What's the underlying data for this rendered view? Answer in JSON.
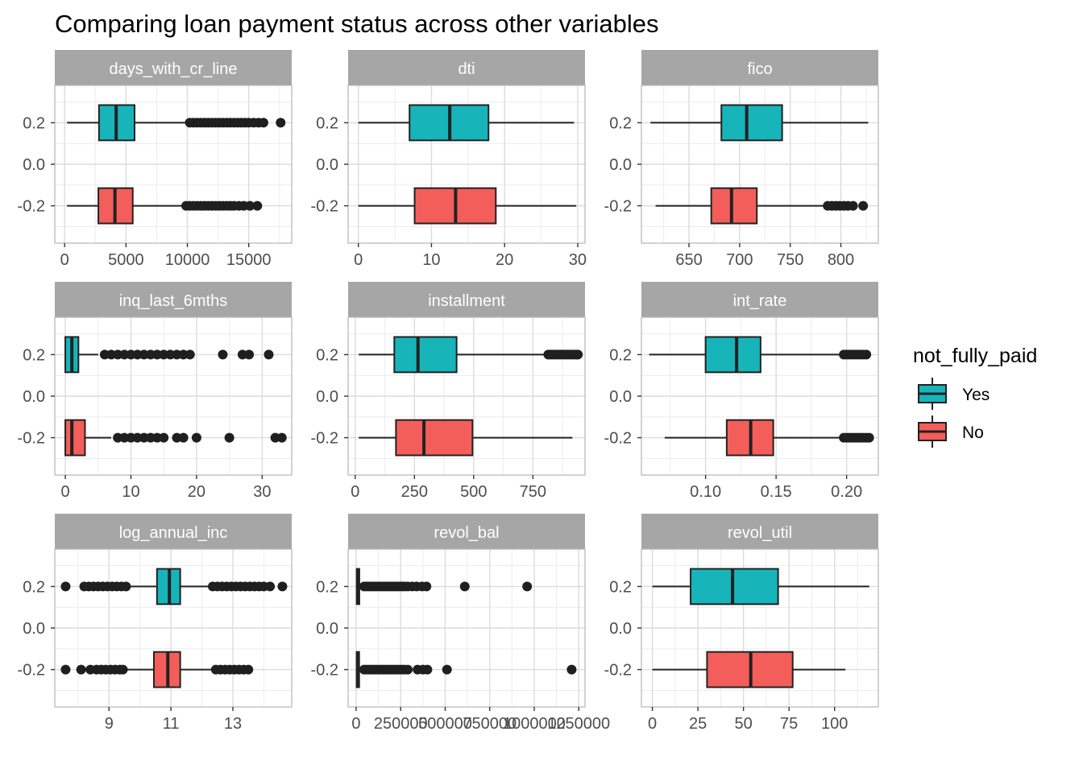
{
  "title": "Comparing loan payment status across other variables",
  "legend": {
    "title": "not_fully_paid",
    "items": [
      {
        "label": "Yes",
        "color": "#17b4ba"
      },
      {
        "label": "No",
        "color": "#f35e5a"
      }
    ]
  },
  "colors": {
    "yes": "#17b4ba",
    "no": "#f35e5a",
    "strip": "#a6a6a6",
    "grid": "#dcdcdc",
    "box_line": "#222222"
  },
  "chart_data": {
    "type": "boxplot",
    "y_ticks": [
      {
        "value": 0.2,
        "label": "0.2"
      },
      {
        "value": 0.0,
        "label": "0.0"
      },
      {
        "value": -0.2,
        "label": "-0.2"
      }
    ],
    "ylim": [
      -0.38,
      0.38
    ],
    "grid": true,
    "legend_position": "right",
    "panels": [
      {
        "name": "days_with_cr_line",
        "xlim": [
          -800,
          18500
        ],
        "ticks": [
          {
            "v": 0,
            "l": "0"
          },
          {
            "v": 5000,
            "l": "5000"
          },
          {
            "v": 10000,
            "l": "10000"
          },
          {
            "v": 15000,
            "l": "15000"
          }
        ],
        "yes": {
          "min": 200,
          "q1": 2800,
          "median": 4200,
          "q3": 5700,
          "max": 10000,
          "outliers": [
            10200,
            10500,
            10800,
            11100,
            11400,
            11700,
            12000,
            12300,
            12600,
            12900,
            13200,
            13500,
            13800,
            14100,
            14400,
            14700,
            15000,
            15400,
            15800,
            16200,
            17600
          ]
        },
        "no": {
          "min": 200,
          "q1": 2750,
          "median": 4100,
          "q3": 5550,
          "max": 9800,
          "outliers": [
            9900,
            10200,
            10500,
            10800,
            11100,
            11400,
            11700,
            12000,
            12300,
            12600,
            12900,
            13200,
            13500,
            13800,
            14200,
            14600,
            15100,
            15700
          ]
        }
      },
      {
        "name": "dti",
        "xlim": [
          -1.4,
          31
        ],
        "ticks": [
          {
            "v": 0,
            "l": "0"
          },
          {
            "v": 10,
            "l": "10"
          },
          {
            "v": 20,
            "l": "20"
          },
          {
            "v": 30,
            "l": "30"
          }
        ],
        "yes": {
          "min": 0,
          "q1": 7,
          "median": 12.5,
          "q3": 17.8,
          "max": 29.5,
          "outliers": []
        },
        "no": {
          "min": 0,
          "q1": 7.7,
          "median": 13.3,
          "q3": 18.8,
          "max": 29.8,
          "outliers": []
        }
      },
      {
        "name": "fico",
        "xlim": [
          603,
          837
        ],
        "ticks": [
          {
            "v": 650,
            "l": "650"
          },
          {
            "v": 700,
            "l": "700"
          },
          {
            "v": 750,
            "l": "750"
          },
          {
            "v": 800,
            "l": "800"
          }
        ],
        "yes": {
          "min": 612,
          "q1": 682,
          "median": 707,
          "q3": 742,
          "max": 827,
          "outliers": []
        },
        "no": {
          "min": 617,
          "q1": 672,
          "median": 692,
          "q3": 717,
          "max": 784,
          "outliers": [
            787,
            791,
            795,
            799,
            803,
            807,
            812,
            822
          ]
        }
      },
      {
        "name": "inq_last_6mths",
        "xlim": [
          -1.6,
          34.5
        ],
        "ticks": [
          {
            "v": 0,
            "l": "0"
          },
          {
            "v": 10,
            "l": "10"
          },
          {
            "v": 20,
            "l": "20"
          },
          {
            "v": 30,
            "l": "30"
          }
        ],
        "yes": {
          "min": 0,
          "q1": 0,
          "median": 1,
          "q3": 2,
          "max": 5,
          "outliers": [
            6,
            7,
            8,
            9,
            10,
            11,
            12,
            13,
            14,
            15,
            16,
            17,
            18,
            19,
            24,
            27,
            28,
            31
          ]
        },
        "no": {
          "min": 0,
          "q1": 0,
          "median": 1,
          "q3": 3,
          "max": 7,
          "outliers": [
            8,
            9,
            10,
            11,
            12,
            13,
            14,
            15,
            17,
            18,
            20,
            25,
            32,
            33
          ]
        }
      },
      {
        "name": "installment",
        "xlim": [
          -30,
          970
        ],
        "ticks": [
          {
            "v": 0,
            "l": "0"
          },
          {
            "v": 250,
            "l": "250"
          },
          {
            "v": 500,
            "l": "500"
          },
          {
            "v": 750,
            "l": "750"
          }
        ],
        "yes": {
          "min": 15,
          "q1": 165,
          "median": 265,
          "q3": 428,
          "max": 810,
          "outliers": [
            815,
            825,
            835,
            845,
            855,
            865,
            875,
            885,
            895,
            905,
            915,
            925,
            935,
            940
          ]
        },
        "no": {
          "min": 15,
          "q1": 172,
          "median": 290,
          "q3": 495,
          "max": 917,
          "outliers": []
        }
      },
      {
        "name": "int_rate",
        "xlim": [
          0.0545,
          0.2225
        ],
        "ticks": [
          {
            "v": 0.1,
            "l": "0.10"
          },
          {
            "v": 0.15,
            "l": "0.15"
          },
          {
            "v": 0.2,
            "l": "0.20"
          }
        ],
        "yes": {
          "min": 0.06,
          "q1": 0.1,
          "median": 0.122,
          "q3": 0.139,
          "max": 0.197,
          "outliers": [
            0.198,
            0.2,
            0.202,
            0.204,
            0.206,
            0.208,
            0.21,
            0.212,
            0.214
          ]
        },
        "no": {
          "min": 0.071,
          "q1": 0.115,
          "median": 0.132,
          "q3": 0.148,
          "max": 0.196,
          "outliers": [
            0.198,
            0.2,
            0.202,
            0.204,
            0.206,
            0.208,
            0.21,
            0.212,
            0.214,
            0.216
          ]
        }
      },
      {
        "name": "log_annual_inc",
        "xlim": [
          7.25,
          14.9
        ],
        "ticks": [
          {
            "v": 9,
            "l": "9"
          },
          {
            "v": 11,
            "l": "11"
          },
          {
            "v": 13,
            "l": "13"
          }
        ],
        "yes": {
          "min": 9.6,
          "q1": 10.55,
          "median": 10.95,
          "q3": 11.3,
          "max": 12.3,
          "outliers": [
            7.6,
            8.2,
            8.35,
            8.5,
            8.65,
            8.8,
            8.95,
            9.1,
            9.25,
            9.4,
            9.55,
            12.35,
            12.5,
            12.65,
            12.8,
            12.95,
            13.1,
            13.25,
            13.4,
            13.55,
            13.7,
            13.85,
            14.0,
            14.2,
            14.6
          ]
        },
        "no": {
          "min": 9.5,
          "q1": 10.45,
          "median": 10.9,
          "q3": 11.3,
          "max": 12.4,
          "outliers": [
            7.6,
            8.1,
            8.4,
            8.6,
            8.75,
            8.9,
            9.05,
            9.2,
            9.35,
            9.45,
            12.45,
            12.6,
            12.75,
            12.9,
            13.05,
            13.2,
            13.35,
            13.5
          ]
        }
      },
      {
        "name": "revol_bal",
        "xlim": [
          -45000,
          1285000
        ],
        "ticks": [
          {
            "v": 0,
            "l": "0"
          },
          {
            "v": 250000,
            "l": "250000"
          },
          {
            "v": 500000,
            "l": "500000"
          },
          {
            "v": 750000,
            "l": "750000"
          },
          {
            "v": 1000000,
            "l": "1000000"
          },
          {
            "v": 1250000,
            "l": "1250000"
          }
        ],
        "yes": {
          "min": 0,
          "q1": 3500,
          "median": 8500,
          "q3": 18000,
          "max": 40000,
          "outliers": [
            45000,
            60000,
            75000,
            90000,
            105000,
            120000,
            135000,
            150000,
            165000,
            180000,
            195000,
            210000,
            225000,
            240000,
            255000,
            270000,
            290000,
            315000,
            340000,
            370000,
            395000,
            610000,
            960000
          ]
        },
        "no": {
          "min": 0,
          "q1": 3200,
          "median": 8000,
          "q3": 17000,
          "max": 38000,
          "outliers": [
            45000,
            60000,
            75000,
            90000,
            105000,
            120000,
            135000,
            150000,
            165000,
            180000,
            195000,
            210000,
            225000,
            240000,
            255000,
            270000,
            290000,
            345000,
            375000,
            400000,
            510000,
            1210000
          ]
        }
      },
      {
        "name": "revol_util",
        "xlim": [
          -6,
          124
        ],
        "ticks": [
          {
            "v": 0,
            "l": "0"
          },
          {
            "v": 25,
            "l": "25"
          },
          {
            "v": 50,
            "l": "50"
          },
          {
            "v": 75,
            "l": "75"
          },
          {
            "v": 100,
            "l": "100"
          }
        ],
        "yes": {
          "min": 0,
          "q1": 21,
          "median": 44,
          "q3": 69,
          "max": 119,
          "outliers": []
        },
        "no": {
          "min": 0,
          "q1": 30,
          "median": 54,
          "q3": 77,
          "max": 106,
          "outliers": []
        }
      }
    ]
  }
}
